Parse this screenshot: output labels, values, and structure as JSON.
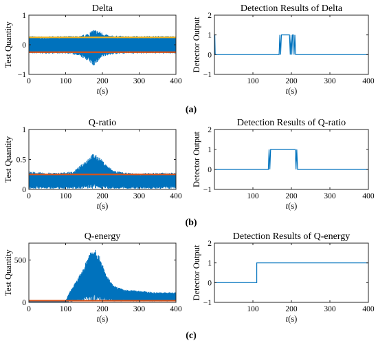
{
  "figure": {
    "panel_tags": [
      "(a)",
      "(b)",
      "(c)"
    ]
  },
  "colors": {
    "signal": "#0072BD",
    "threshold_upper": "#EDB120",
    "threshold_lower": "#D95319",
    "axes": "#262626"
  },
  "chart_data": [
    {
      "id": "delta",
      "type": "line",
      "title": "Delta",
      "xlabel_italic": "t",
      "xlabel_unit": "(s)",
      "ylabel": "Test Quantity",
      "xlim": [
        0,
        400
      ],
      "ylim": [
        -1,
        1
      ],
      "xticks": [
        0,
        100,
        200,
        300,
        400
      ],
      "xtick_labels": [
        "0",
        "100",
        "200",
        "300",
        "400"
      ],
      "yticks": [
        -1,
        0,
        1
      ],
      "ytick_labels": [
        "−1",
        "0",
        "1"
      ],
      "series": [
        {
          "role": "signal",
          "x": [
            0,
            40,
            80,
            110,
            140,
            165,
            175,
            185,
            195,
            205,
            220,
            260,
            300,
            340,
            400
          ],
          "upper": [
            0.3,
            0.28,
            0.3,
            0.3,
            0.3,
            0.42,
            0.52,
            0.5,
            0.45,
            0.38,
            0.32,
            0.3,
            0.3,
            0.3,
            0.3
          ],
          "lower": [
            -0.3,
            -0.3,
            -0.3,
            -0.3,
            -0.4,
            -0.58,
            -0.72,
            -0.62,
            -0.48,
            -0.4,
            -0.34,
            -0.3,
            -0.3,
            -0.3,
            -0.3
          ],
          "initial_spike": 1.0
        },
        {
          "role": "threshold_upper",
          "x": [
            0,
            400
          ],
          "y": [
            0.25,
            0.25
          ]
        },
        {
          "role": "threshold_lower",
          "x": [
            0,
            400
          ],
          "y": [
            -0.25,
            -0.25
          ]
        }
      ]
    },
    {
      "id": "delta-detect",
      "type": "line",
      "title": "Detection Results of Delta",
      "xlabel_italic": "t",
      "xlabel_unit": "(s)",
      "ylabel": "Detector Output",
      "xlim": [
        0,
        400
      ],
      "ylim": [
        -1,
        2
      ],
      "xticks": [
        100,
        200,
        300,
        400
      ],
      "xtick_labels": [
        "100",
        "200",
        "300",
        "400"
      ],
      "yticks": [
        -1,
        0,
        1,
        2
      ],
      "ytick_labels": [
        "−1",
        "0",
        "1",
        "2"
      ],
      "series": [
        {
          "role": "signal",
          "x": [
            0,
            1,
            2,
            4,
            168,
            170,
            172,
            174,
            176,
            195,
            197,
            199,
            201,
            203,
            205,
            207,
            209,
            211,
            400
          ],
          "y": [
            1,
            1,
            0,
            0,
            0,
            1,
            0,
            1,
            1,
            1,
            0,
            1,
            0,
            1,
            1,
            0,
            1,
            0,
            0
          ]
        }
      ]
    },
    {
      "id": "qratio",
      "type": "line",
      "title": "Q-ratio",
      "xlabel_italic": "t",
      "xlabel_unit": "(s)",
      "ylabel": "Test Quantity",
      "xlim": [
        0,
        400
      ],
      "ylim": [
        0,
        1
      ],
      "xticks": [
        0,
        100,
        200,
        300,
        400
      ],
      "xtick_labels": [
        "0",
        "100",
        "200",
        "300",
        "400"
      ],
      "yticks": [
        0,
        0.5,
        1
      ],
      "ytick_labels": [
        "0",
        "0.5",
        "1"
      ],
      "series": [
        {
          "role": "signal",
          "x": [
            0,
            40,
            80,
            120,
            140,
            160,
            175,
            190,
            210,
            230,
            260,
            300,
            340,
            400
          ],
          "upper": [
            0.3,
            0.28,
            0.28,
            0.3,
            0.4,
            0.52,
            0.6,
            0.55,
            0.42,
            0.32,
            0.28,
            0.27,
            0.28,
            0.28
          ],
          "lower": [
            0.01,
            0.01,
            0.01,
            0.01,
            0.01,
            0.01,
            0.01,
            0.01,
            0.01,
            0.01,
            0.01,
            0.01,
            0.01,
            0.01
          ],
          "initial_spike": 1.0
        },
        {
          "role": "threshold_lower",
          "x": [
            0,
            400
          ],
          "y": [
            0.25,
            0.25
          ]
        }
      ]
    },
    {
      "id": "qratio-detect",
      "type": "line",
      "title": "Detection Results of Q-ratio",
      "xlabel_italic": "t",
      "xlabel_unit": "(s)",
      "ylabel": "Detector Output",
      "xlim": [
        0,
        400
      ],
      "ylim": [
        -1,
        2
      ],
      "xticks": [
        100,
        200,
        300,
        400
      ],
      "xtick_labels": [
        "100",
        "200",
        "300",
        "400"
      ],
      "yticks": [
        -1,
        0,
        1,
        2
      ],
      "ytick_labels": [
        "−1",
        "0",
        "1",
        "2"
      ],
      "series": [
        {
          "role": "signal",
          "x": [
            0,
            140,
            142,
            144,
            146,
            148,
            210,
            212,
            214,
            216,
            218,
            400
          ],
          "y": [
            0,
            0,
            1,
            0,
            1,
            1,
            1,
            0,
            1,
            0,
            0,
            0
          ]
        }
      ]
    },
    {
      "id": "qenergy",
      "type": "line",
      "title": "Q-energy",
      "xlabel_italic": "t",
      "xlabel_unit": "(s)",
      "ylabel": "Test Quantity",
      "xlim": [
        0,
        400
      ],
      "ylim": [
        0,
        700
      ],
      "xticks": [
        0,
        100,
        200,
        300,
        400
      ],
      "xtick_labels": [
        "0",
        "100",
        "200",
        "300",
        "400"
      ],
      "yticks": [
        0,
        500
      ],
      "ytick_labels": [
        "0",
        "500"
      ],
      "series": [
        {
          "role": "signal",
          "x": [
            0,
            100,
            110,
            130,
            150,
            165,
            180,
            195,
            210,
            230,
            260,
            300,
            340,
            400
          ],
          "upper": [
            15,
            15,
            120,
            260,
            420,
            600,
            650,
            520,
            330,
            200,
            150,
            140,
            120,
            120
          ],
          "lower": [
            0,
            0,
            5,
            10,
            10,
            10,
            10,
            10,
            10,
            10,
            10,
            10,
            10,
            10
          ]
        },
        {
          "role": "threshold_lower",
          "x": [
            0,
            400
          ],
          "y": [
            20,
            20
          ]
        }
      ]
    },
    {
      "id": "qenergy-detect",
      "type": "line",
      "title": "Detection Results of Q-energy",
      "xlabel_italic": "t",
      "xlabel_unit": "(s)",
      "ylabel": "Detector Output",
      "xlim": [
        0,
        400
      ],
      "ylim": [
        -1,
        2
      ],
      "xticks": [
        100,
        200,
        300,
        400
      ],
      "xtick_labels": [
        "100",
        "200",
        "300",
        "400"
      ],
      "yticks": [
        -1,
        0,
        1,
        2
      ],
      "ytick_labels": [
        "−1",
        "0",
        "1",
        "2"
      ],
      "series": [
        {
          "role": "signal",
          "x": [
            0,
            110,
            110,
            400
          ],
          "y": [
            0,
            0,
            1,
            1
          ]
        }
      ]
    }
  ]
}
